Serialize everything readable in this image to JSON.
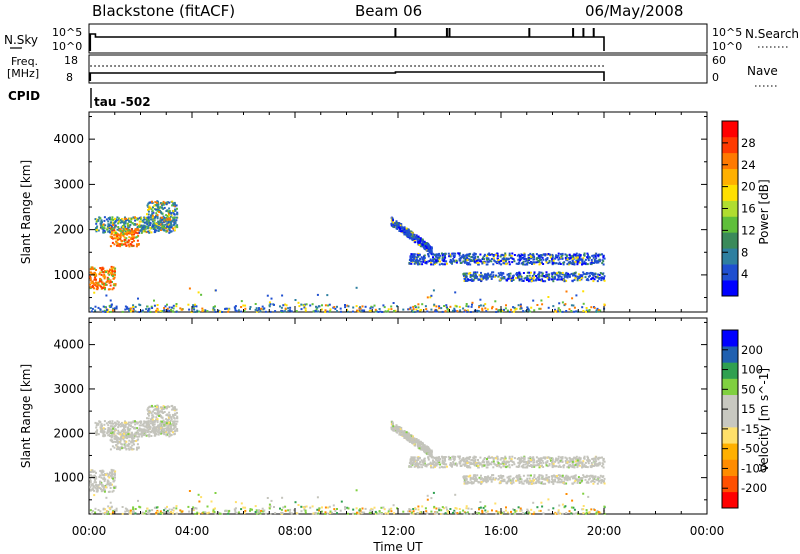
{
  "header": {
    "station": "Blackstone (fitACF)",
    "beam": "Beam 06",
    "date": "06/May/2008"
  },
  "noise_panel": {
    "left_label": "N.Sky",
    "right_label": "N.Search",
    "left_ticks": [
      "10^5",
      "10^0"
    ],
    "right_ticks": [
      "10^5",
      "10^0"
    ],
    "spikes_hours": [
      11.9,
      13.9,
      14.0,
      17.1,
      18.8,
      19.2,
      19.6
    ]
  },
  "freq_panel": {
    "left_label_1": "Freq.",
    "left_label_2": "[MHz]",
    "right_label": "Nave",
    "left_ticks": [
      "18",
      "8"
    ],
    "right_ticks": [
      "60",
      "0"
    ]
  },
  "cpid": {
    "label": "CPID",
    "value": "tau -502"
  },
  "axes": {
    "ylabel": "Slant Range [km]",
    "xlabel": "Time UT",
    "x_ticks": [
      "00:00",
      "04:00",
      "08:00",
      "12:00",
      "16:00",
      "20:00",
      "00:00"
    ],
    "y_ticks": [
      "4000",
      "3000",
      "2000",
      "1000"
    ]
  },
  "chart_data": [
    {
      "type": "heatmap",
      "title": "Power",
      "colorbar_label": "Power [dB]",
      "colorbar_ticks": [
        "28",
        "24",
        "20",
        "16",
        "12",
        "8",
        "4"
      ],
      "colorbar_colors": [
        "#0000ff",
        "#1f4fd0",
        "#2e7fa0",
        "#3a8a5a",
        "#5fbf3a",
        "#b0dd30",
        "#ffe000",
        "#ffb000",
        "#ff7a00",
        "#ff3a00",
        "#ff0000"
      ],
      "xlim_hours": [
        0,
        24
      ],
      "ylim_km": [
        180,
        4600
      ],
      "regions": [
        {
          "t": [
            0.0,
            1.0
          ],
          "r": [
            700,
            1200
          ],
          "level": "high"
        },
        {
          "t": [
            0.2,
            3.3
          ],
          "r": [
            1950,
            2300
          ],
          "level": "mid"
        },
        {
          "t": [
            0.8,
            1.9
          ],
          "r": [
            1650,
            2050
          ],
          "level": "high"
        },
        {
          "t": [
            2.2,
            3.4
          ],
          "r": [
            2050,
            2650
          ],
          "level": "mid"
        },
        {
          "t": [
            11.7,
            13.3
          ],
          "r": [
            1700,
            2350
          ],
          "level": "low"
        },
        {
          "t": [
            12.4,
            20.0
          ],
          "r": [
            1250,
            1500
          ],
          "level": "low"
        },
        {
          "t": [
            14.5,
            20.0
          ],
          "r": [
            880,
            1080
          ],
          "level": "low"
        },
        {
          "t": [
            0.0,
            20.0
          ],
          "r": [
            190,
            380
          ],
          "level": "mixed"
        }
      ]
    },
    {
      "type": "heatmap",
      "title": "Velocity",
      "colorbar_label": "Velocity [m s^-1]",
      "colorbar_ticks": [
        "200",
        "100",
        "50",
        "15",
        "-15",
        "-50",
        "-100",
        "-200"
      ],
      "colorbar_colors": [
        "#ff0000",
        "#ff5000",
        "#ff8c00",
        "#ffb000",
        "#ffe06a",
        "#c8c8c0",
        "#c8c8c0",
        "#80d040",
        "#30a050",
        "#2060b0",
        "#0000ff"
      ],
      "xlim_hours": [
        0,
        24
      ],
      "ylim_km": [
        180,
        4600
      ],
      "regions": [
        {
          "t": [
            0.0,
            1.0
          ],
          "r": [
            700,
            1200
          ],
          "level": "gray"
        },
        {
          "t": [
            0.2,
            3.3
          ],
          "r": [
            1950,
            2300
          ],
          "level": "gray"
        },
        {
          "t": [
            0.8,
            1.9
          ],
          "r": [
            1650,
            2050
          ],
          "level": "gray"
        },
        {
          "t": [
            2.2,
            3.4
          ],
          "r": [
            2050,
            2650
          ],
          "level": "gray"
        },
        {
          "t": [
            11.7,
            13.3
          ],
          "r": [
            1700,
            2350
          ],
          "level": "gray"
        },
        {
          "t": [
            12.4,
            20.0
          ],
          "r": [
            1250,
            1500
          ],
          "level": "gray"
        },
        {
          "t": [
            14.5,
            20.0
          ],
          "r": [
            880,
            1080
          ],
          "level": "gray"
        },
        {
          "t": [
            0.0,
            20.0
          ],
          "r": [
            190,
            380
          ],
          "level": "mixed"
        }
      ]
    }
  ]
}
